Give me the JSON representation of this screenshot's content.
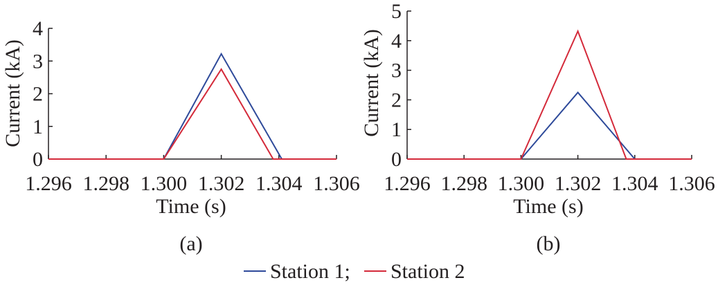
{
  "chart_data": [
    {
      "type": "line",
      "panel_label": "(a)",
      "xlabel": "Time (s)",
      "ylabel": "Current (kA)",
      "xlim": [
        1.296,
        1.306
      ],
      "ylim": [
        0,
        4
      ],
      "xticks": [
        "1.296",
        "1.298",
        "1.300",
        "1.302",
        "1.304",
        "1.306"
      ],
      "yticks": [
        "0",
        "1",
        "2",
        "3",
        "4"
      ],
      "series": [
        {
          "name": "Station 1",
          "color": "#2e4a9a",
          "x": [
            1.296,
            1.3,
            1.302,
            1.3041,
            1.306
          ],
          "y": [
            0,
            0,
            3.22,
            0,
            0
          ]
        },
        {
          "name": "Station 2",
          "color": "#d42a3a",
          "x": [
            1.296,
            1.3,
            1.302,
            1.3038,
            1.306
          ],
          "y": [
            0,
            0,
            2.75,
            0,
            0
          ]
        }
      ]
    },
    {
      "type": "line",
      "panel_label": "(b)",
      "xlabel": "Time (s)",
      "ylabel": "Current (kA)",
      "xlim": [
        1.296,
        1.306
      ],
      "ylim": [
        0,
        5
      ],
      "xticks": [
        "1.296",
        "1.298",
        "1.300",
        "1.302",
        "1.304",
        "1.306"
      ],
      "yticks": [
        "0",
        "1",
        "2",
        "3",
        "4",
        "5"
      ],
      "series": [
        {
          "name": "Station 1",
          "color": "#2e4a9a",
          "x": [
            1.296,
            1.3,
            1.302,
            1.304,
            1.306
          ],
          "y": [
            0,
            0,
            2.25,
            0,
            0
          ]
        },
        {
          "name": "Station 2",
          "color": "#d42a3a",
          "x": [
            1.296,
            1.3,
            1.302,
            1.3037,
            1.306
          ],
          "y": [
            0,
            0,
            4.32,
            0,
            0
          ]
        }
      ]
    }
  ],
  "legend": {
    "entries": [
      {
        "label": "Station 1;",
        "color": "#2e4a9a"
      },
      {
        "label": "Station 2",
        "color": "#d42a3a"
      }
    ]
  }
}
